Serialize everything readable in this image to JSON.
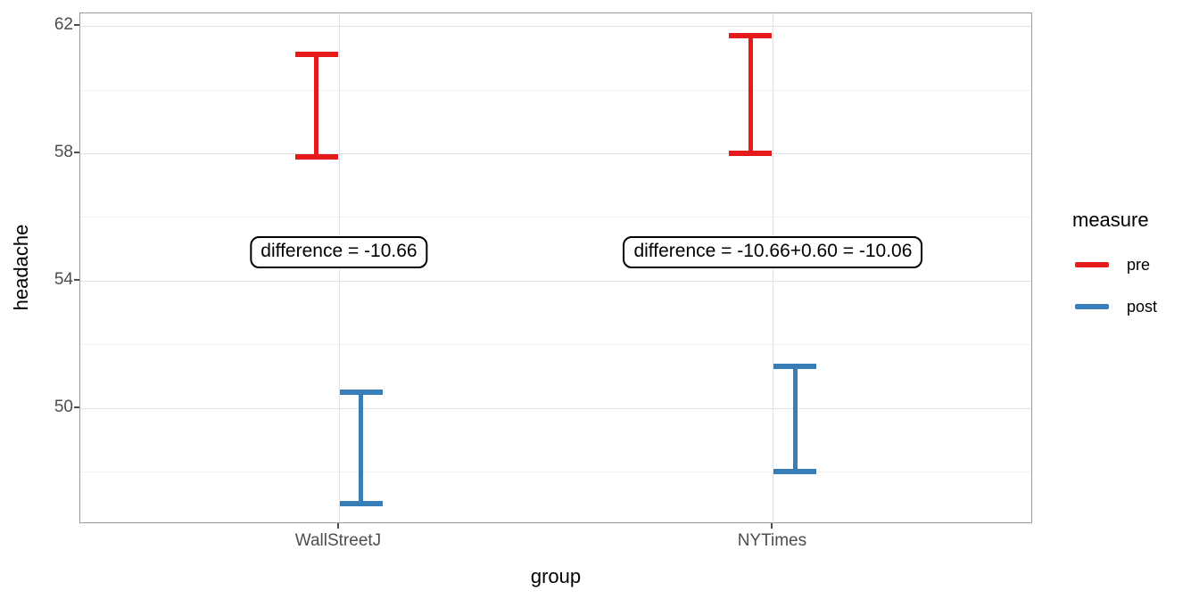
{
  "chart_data": {
    "type": "errorbar",
    "title": "",
    "xlabel": "group",
    "ylabel": "headache",
    "categories": [
      "WallStreetJ",
      "NYTimes"
    ],
    "y_axis": {
      "ticks": [
        62,
        58,
        54,
        50
      ],
      "tick_labels": [
        "62",
        "58",
        "54",
        "50"
      ],
      "minor_ticks": [
        60,
        56,
        52,
        48
      ],
      "range": [
        46.35,
        62.4
      ]
    },
    "grid": true,
    "series": [
      {
        "name": "pre",
        "color": "#E41A1C",
        "points": [
          {
            "category": "WallStreetJ",
            "ymin": 57.9,
            "ymax": 61.1
          },
          {
            "category": "NYTimes",
            "ymin": 58.0,
            "ymax": 61.7
          }
        ]
      },
      {
        "name": "post",
        "color": "#377EB8",
        "points": [
          {
            "category": "WallStreetJ",
            "ymin": 47.0,
            "ymax": 50.5
          },
          {
            "category": "NYTimes",
            "ymin": 48.0,
            "ymax": 51.3
          }
        ]
      }
    ],
    "annotations": [
      {
        "text": "difference = -10.66",
        "category": "WallStreetJ",
        "y": 54.9
      },
      {
        "text": "difference = -10.66+0.60 = -10.06",
        "category": "NYTimes",
        "y": 54.9
      }
    ],
    "legend": {
      "title": "measure",
      "position": "right",
      "entries": [
        {
          "label": "pre",
          "color": "#E41A1C"
        },
        {
          "label": "post",
          "color": "#377EB8"
        }
      ]
    }
  },
  "theme": {
    "background": "#FFFFFF",
    "panel_border": "#9B9B9B",
    "major_grid": "#E2E2E2",
    "minor_grid": "#F0F0F0",
    "tick_mark": "#4D4D4D",
    "tick_label": "#4D4D4D",
    "axis_title": "#000000",
    "annotation_border": "#000000"
  }
}
